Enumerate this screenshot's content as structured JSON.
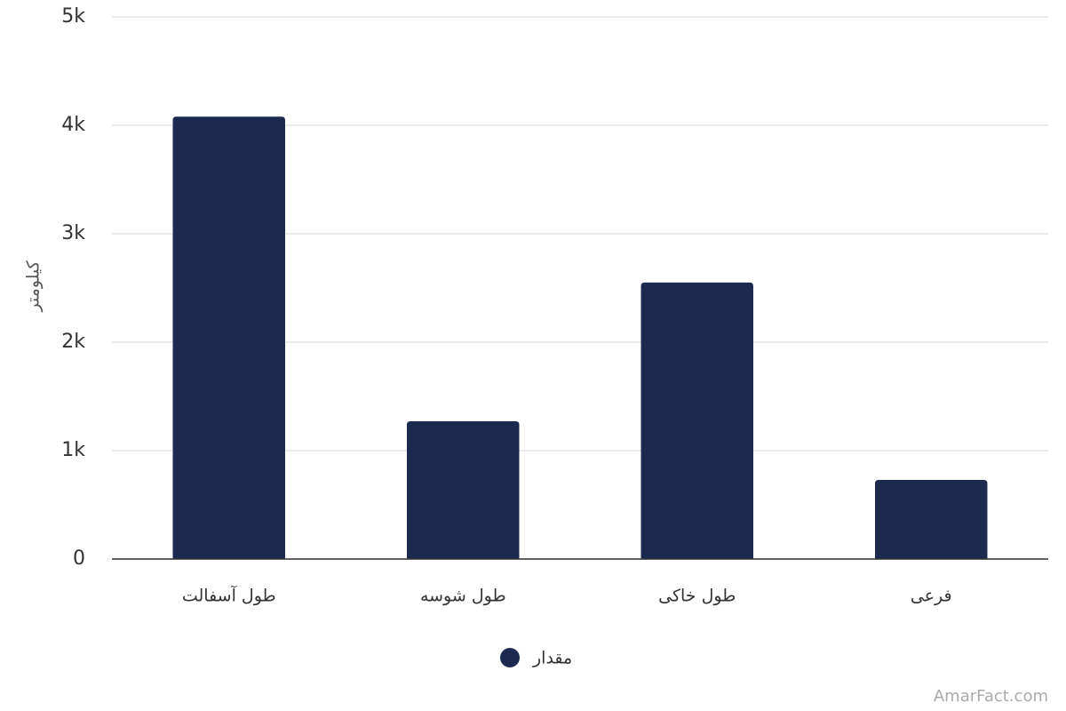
{
  "chart_data": {
    "type": "bar",
    "y_axis_label": "کیلومتر",
    "categories": [
      "طول آسفالت",
      "طول شوسه",
      "طول خاکی",
      "فرعی"
    ],
    "series": [
      {
        "name": "مقدار",
        "color": "#1b2a4e",
        "values": [
          4080,
          1270,
          2550,
          730
        ]
      }
    ],
    "ylim": [
      0,
      5000
    ],
    "yticks": [
      0,
      {
        "value": 1000,
        "label": "1k"
      },
      {
        "value": 2000,
        "label": "2k"
      },
      {
        "value": 3000,
        "label": "3k"
      },
      {
        "value": 4000,
        "label": "4k"
      },
      {
        "value": 5000,
        "label": "5k"
      }
    ],
    "grid": true,
    "credit": "AmarFact.com"
  }
}
